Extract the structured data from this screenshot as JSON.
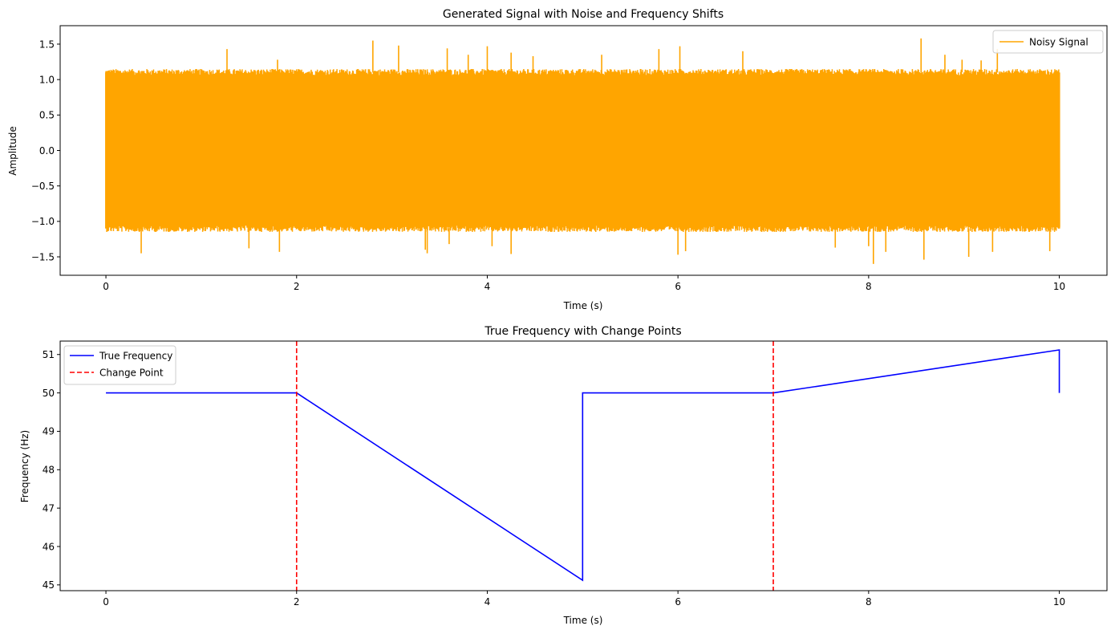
{
  "chart_data": [
    {
      "type": "line",
      "title": "Generated Signal with Noise and Frequency Shifts",
      "xlabel": "Time (s)",
      "ylabel": "Amplitude",
      "xlim": [
        -0.48,
        10.5
      ],
      "ylim": [
        -1.76,
        1.76
      ],
      "xticks": [
        0,
        2,
        4,
        6,
        8,
        10
      ],
      "xtick_labels": [
        "0",
        "2",
        "4",
        "6",
        "8",
        "10"
      ],
      "yticks": [
        -1.5,
        -1.0,
        -0.5,
        0.0,
        0.5,
        1.0,
        1.5
      ],
      "ytick_labels": [
        "−1.5",
        "−1.0",
        "−0.5",
        "0.0",
        "0.5",
        "1.0",
        "1.5"
      ],
      "legend_position": "top-right",
      "series": [
        {
          "name": "Noisy Signal",
          "color": "#ffa500",
          "style": "solid",
          "x_range": [
            0,
            10
          ],
          "band": [
            -1.1,
            1.1
          ],
          "spikes": [
            [
              0.37,
              -1.45
            ],
            [
              1.27,
              1.43
            ],
            [
              1.5,
              -1.38
            ],
            [
              1.82,
              -1.43
            ],
            [
              2.8,
              1.55
            ],
            [
              3.07,
              1.48
            ],
            [
              3.35,
              -1.4
            ],
            [
              3.37,
              -1.45
            ],
            [
              3.58,
              1.44
            ],
            [
              3.8,
              1.35
            ],
            [
              4.0,
              1.47
            ],
            [
              4.25,
              1.38
            ],
            [
              4.25,
              -1.46
            ],
            [
              4.48,
              1.33
            ],
            [
              5.2,
              1.35
            ],
            [
              5.8,
              1.43
            ],
            [
              6.0,
              -1.47
            ],
            [
              6.02,
              1.47
            ],
            [
              6.08,
              -1.42
            ],
            [
              6.68,
              1.4
            ],
            [
              7.65,
              -1.37
            ],
            [
              8.0,
              -1.35
            ],
            [
              8.05,
              -1.6
            ],
            [
              8.18,
              -1.43
            ],
            [
              8.55,
              1.58
            ],
            [
              8.58,
              -1.54
            ],
            [
              8.8,
              1.35
            ],
            [
              9.05,
              -1.5
            ],
            [
              9.3,
              -1.43
            ],
            [
              9.35,
              1.43
            ],
            [
              9.9,
              -1.42
            ],
            [
              1.8,
              1.28
            ],
            [
              4.05,
              -1.35
            ],
            [
              3.6,
              -1.32
            ],
            [
              8.98,
              1.28
            ],
            [
              9.18,
              1.27
            ]
          ]
        }
      ]
    },
    {
      "type": "line",
      "title": "True Frequency with Change Points",
      "xlabel": "Time (s)",
      "ylabel": "Frequency (Hz)",
      "xlim": [
        -0.48,
        10.5
      ],
      "ylim": [
        44.85,
        51.35
      ],
      "xticks": [
        0,
        2,
        4,
        6,
        8,
        10
      ],
      "xtick_labels": [
        "0",
        "2",
        "4",
        "6",
        "8",
        "10"
      ],
      "yticks": [
        45,
        46,
        47,
        48,
        49,
        50,
        51
      ],
      "ytick_labels": [
        "45",
        "46",
        "47",
        "48",
        "49",
        "50",
        "51"
      ],
      "legend_position": "top-left",
      "series": [
        {
          "name": "True Frequency",
          "color": "#0000ff",
          "style": "solid",
          "x": [
            0,
            2,
            5,
            5,
            7,
            10,
            10
          ],
          "y": [
            50,
            50,
            45.12,
            50,
            50,
            51.12,
            50
          ]
        },
        {
          "name": "Change Point",
          "color": "#ff0000",
          "style": "dashed",
          "vlines": [
            2,
            7
          ]
        }
      ]
    }
  ]
}
